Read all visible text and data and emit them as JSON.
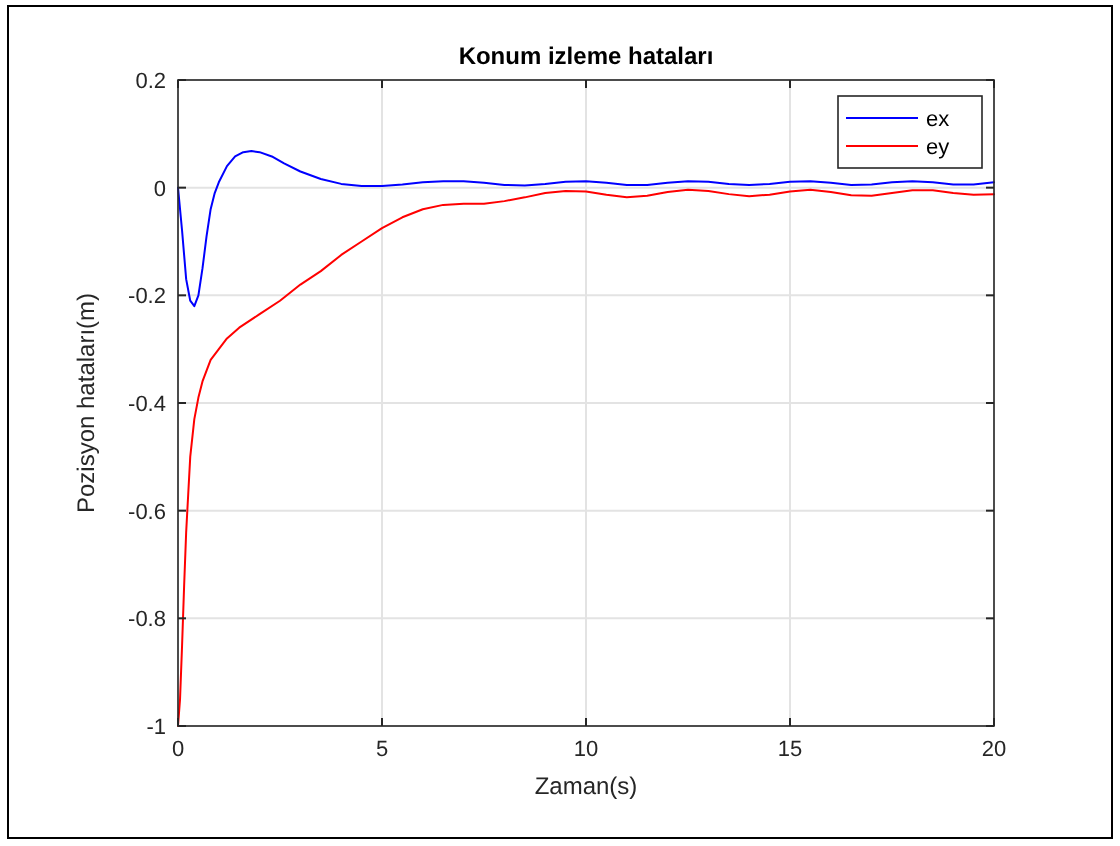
{
  "chart_data": {
    "type": "line",
    "title": "Konum izleme hataları",
    "xlabel": "Zaman(s)",
    "ylabel": "Pozisyon hataları(m)",
    "xlim": [
      0,
      20
    ],
    "ylim": [
      -1,
      0.2
    ],
    "xticks": [
      0,
      5,
      10,
      15,
      20
    ],
    "yticks": [
      -1,
      -0.8,
      -0.6,
      -0.4,
      -0.2,
      0,
      0.2
    ],
    "grid": true,
    "legend": "top right",
    "line_style": "solid",
    "marker": "none",
    "series": [
      {
        "name": "ex",
        "color": "#0000ff",
        "x": [
          0,
          0.1,
          0.2,
          0.3,
          0.4,
          0.5,
          0.6,
          0.7,
          0.8,
          0.9,
          1.0,
          1.2,
          1.4,
          1.6,
          1.8,
          2.0,
          2.3,
          2.6,
          3.0,
          3.5,
          4.0,
          4.5,
          5.0,
          5.5,
          6.0,
          6.5,
          7.0,
          7.5,
          8.0,
          8.5,
          9.0,
          9.5,
          10.0,
          10.5,
          11.0,
          11.5,
          12.0,
          12.5,
          13.0,
          13.5,
          14.0,
          14.5,
          15.0,
          15.5,
          16.0,
          16.5,
          17.0,
          17.5,
          18.0,
          18.5,
          19.0,
          19.5,
          20.0
        ],
        "values": [
          0,
          -0.08,
          -0.17,
          -0.21,
          -0.22,
          -0.2,
          -0.15,
          -0.09,
          -0.04,
          -0.01,
          0.01,
          0.04,
          0.058,
          0.066,
          0.068,
          0.066,
          0.058,
          0.045,
          0.03,
          0.016,
          0.007,
          0.003,
          0.003,
          0.006,
          0.01,
          0.012,
          0.012,
          0.009,
          0.005,
          0.004,
          0.007,
          0.011,
          0.012,
          0.009,
          0.005,
          0.005,
          0.009,
          0.012,
          0.011,
          0.007,
          0.005,
          0.007,
          0.011,
          0.012,
          0.009,
          0.005,
          0.006,
          0.01,
          0.012,
          0.01,
          0.006,
          0.006,
          0.01
        ]
      },
      {
        "name": "ey",
        "color": "#ff0000",
        "x": [
          0,
          0.05,
          0.1,
          0.15,
          0.2,
          0.25,
          0.3,
          0.4,
          0.5,
          0.6,
          0.7,
          0.8,
          1.0,
          1.2,
          1.5,
          2.0,
          2.5,
          3.0,
          3.5,
          4.0,
          4.5,
          5.0,
          5.5,
          6.0,
          6.5,
          7.0,
          7.5,
          8.0,
          8.5,
          9.0,
          9.5,
          10.0,
          10.5,
          11.0,
          11.5,
          12.0,
          12.5,
          13.0,
          13.5,
          14.0,
          14.5,
          15.0,
          15.5,
          16.0,
          16.5,
          17.0,
          17.5,
          18.0,
          18.5,
          19.0,
          19.5,
          20.0
        ],
        "values": [
          -1,
          -0.95,
          -0.85,
          -0.74,
          -0.64,
          -0.57,
          -0.5,
          -0.43,
          -0.39,
          -0.36,
          -0.34,
          -0.32,
          -0.3,
          -0.28,
          -0.26,
          -0.235,
          -0.21,
          -0.18,
          -0.155,
          -0.125,
          -0.1,
          -0.075,
          -0.055,
          -0.04,
          -0.032,
          -0.03,
          -0.03,
          -0.025,
          -0.018,
          -0.01,
          -0.006,
          -0.007,
          -0.013,
          -0.018,
          -0.015,
          -0.008,
          -0.004,
          -0.006,
          -0.012,
          -0.016,
          -0.013,
          -0.007,
          -0.004,
          -0.008,
          -0.014,
          -0.015,
          -0.01,
          -0.005,
          -0.005,
          -0.01,
          -0.013,
          -0.012
        ]
      }
    ]
  }
}
